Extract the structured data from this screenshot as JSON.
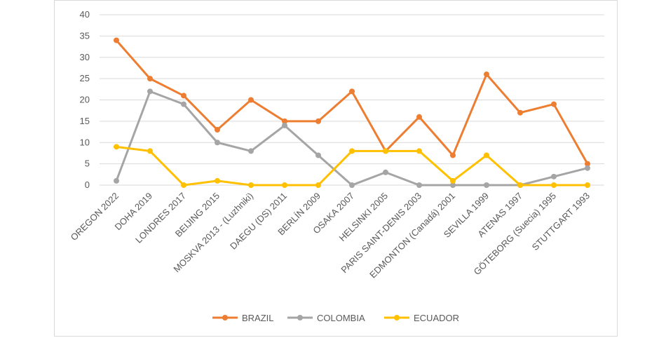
{
  "chart_data": {
    "type": "line",
    "title": "",
    "xlabel": "",
    "ylabel": "",
    "ylim": [
      0,
      40
    ],
    "yticks": [
      0,
      5,
      10,
      15,
      20,
      25,
      30,
      35,
      40
    ],
    "grid": true,
    "legend_position": "bottom",
    "categories": [
      "OREGON 2022",
      "DOHA 2019",
      "LONDRES 2017",
      "BEIJING 2015",
      "MOSKVA 2013 - (Luzhniki)",
      "DAEGU (DS) 2011",
      "BERLÍN 2009",
      "OSAKA 2007",
      "HELSINKI 2005",
      "PARIS SAINT-DENIS 2003",
      "EDMONTON (Canadá) 2001",
      "SEVILLA 1999",
      "ATENAS 1997",
      "GÖTEBORG (Suecia) 1995",
      "STUTTGART 1993"
    ],
    "series": [
      {
        "name": "BRAZIL",
        "color": "#ED7D31",
        "values": [
          34,
          25,
          21,
          13,
          20,
          15,
          15,
          22,
          8,
          16,
          7,
          26,
          17,
          19,
          5
        ]
      },
      {
        "name": "COLOMBIA",
        "color": "#A5A5A5",
        "values": [
          1,
          22,
          19,
          10,
          8,
          14,
          7,
          0,
          3,
          0,
          0,
          0,
          0,
          2,
          4
        ]
      },
      {
        "name": "ECUADOR",
        "color": "#FFC000",
        "values": [
          9,
          8,
          0,
          1,
          0,
          0,
          0,
          8,
          8,
          8,
          1,
          7,
          0,
          0,
          0
        ]
      }
    ]
  }
}
